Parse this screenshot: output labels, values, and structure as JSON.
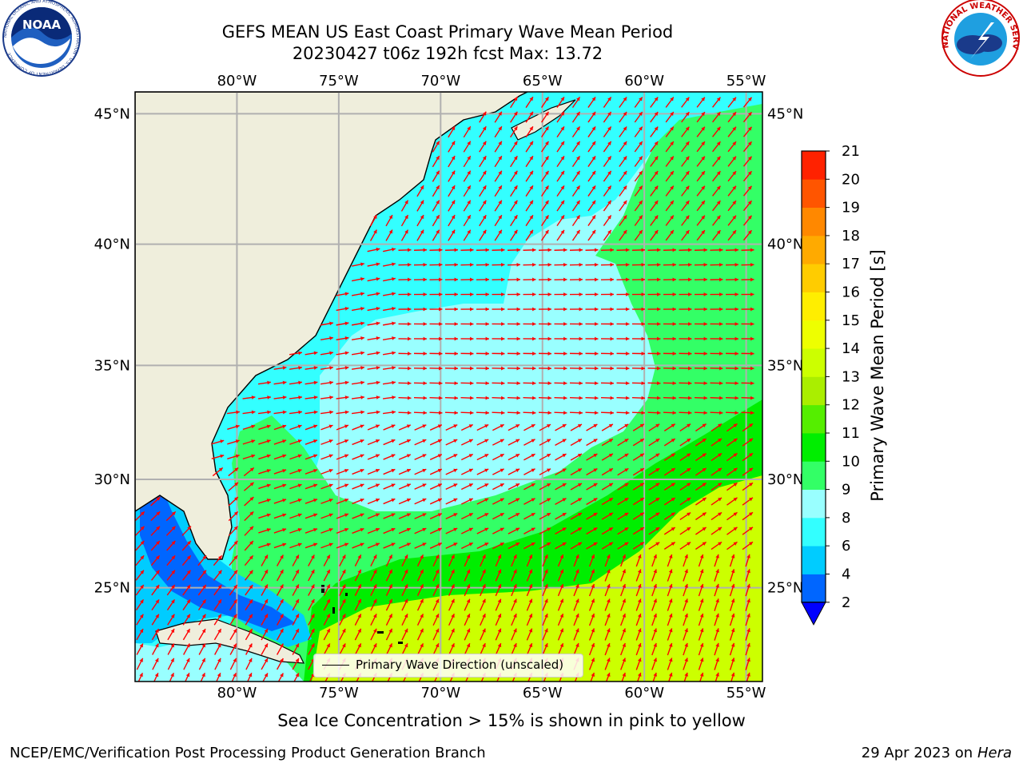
{
  "header": {
    "title_line1": "GEFS MEAN US East Coast Primary Wave Mean Period",
    "title_line2": "20230427 t06z 192h fcst   Max: 13.72"
  },
  "logos": {
    "left_logo_text": "NOAA",
    "left_logo_ring": "NATIONAL OCEANIC AND ATMOSPHERIC ADMINISTRATION · U.S. DEPARTMENT OF COMMERCE",
    "right_logo_ring": "NATIONAL WEATHER SERVICE"
  },
  "map": {
    "lon_labels": [
      "80°W",
      "75°W",
      "70°W",
      "65°W",
      "60°W",
      "55°W"
    ],
    "lat_labels": [
      "45°N",
      "40°N",
      "35°N",
      "30°N",
      "25°N"
    ],
    "lon_values": [
      -80,
      -75,
      -70,
      -65,
      -60,
      -55
    ],
    "lat_values": [
      45,
      40,
      35,
      30,
      25
    ],
    "extent": {
      "lon_min": -85,
      "lon_max": -54.2,
      "lat_min": 20.5,
      "lat_max": 45.8
    },
    "legend": "Primary Wave Direction (unscaled)",
    "colors": {
      "land": "#efeedc",
      "grid": "#b0b0b0",
      "arrow": "#ff0000",
      "coast": "#000000"
    }
  },
  "colorbar": {
    "label": "Primary Wave Mean Period [s]",
    "ticks": [
      "2",
      "4",
      "6",
      "8",
      "9",
      "10",
      "11",
      "12",
      "13",
      "14",
      "15",
      "16",
      "17",
      "18",
      "19",
      "20",
      "21"
    ],
    "colors": [
      "#0066ff",
      "#00ccff",
      "#33ffff",
      "#99ffff",
      "#33ff66",
      "#00ee00",
      "#55ee00",
      "#aaee00",
      "#ccff00",
      "#eeff00",
      "#ffee00",
      "#ffcc00",
      "#ffaa00",
      "#ff8800",
      "#ff5500",
      "#ff2200"
    ],
    "extend_color": "#0000ff"
  },
  "caption": "Sea Ice Concentration > 15% is shown in pink to yellow",
  "footer": {
    "left": "NCEP/EMC/Verification Post Processing Product Generation Branch",
    "right_prefix": "29 Apr 2023 on ",
    "right_host": "Hera"
  }
}
